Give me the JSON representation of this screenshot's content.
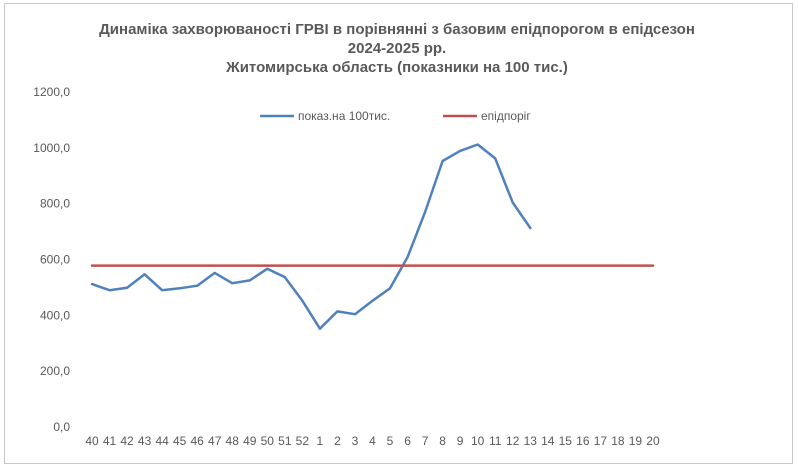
{
  "chart_data": {
    "type": "line",
    "title_lines": [
      "Динаміка захворюваності ГРВІ в порівнянні з базовим епідпорогом в епідсезон",
      "2024-2025 рр.",
      "Житомирська область (показники на 100 тис.)"
    ],
    "categories": [
      "40",
      "41",
      "42",
      "43",
      "44",
      "45",
      "46",
      "47",
      "48",
      "49",
      "50",
      "51",
      "52",
      "1",
      "2",
      "3",
      "4",
      "5",
      "6",
      "7",
      "8",
      "9",
      "10",
      "11",
      "12",
      "13",
      "14",
      "15",
      "16",
      "17",
      "18",
      "19",
      "20"
    ],
    "y_ticks": [
      "0,0",
      "200,0",
      "400,0",
      "600,0",
      "800,0",
      "1000,0",
      "1200,0"
    ],
    "ylim": [
      0,
      1200
    ],
    "grid": false,
    "legend_position": "top-right",
    "colors": {
      "series_1": "#4f81bd",
      "series_2": "#c0504d",
      "text": "#595959"
    },
    "series": [
      {
        "name": "показ.на 100тис.",
        "values": [
          512,
          490,
          499,
          547,
          490,
          497,
          506,
          552,
          515,
          525,
          567,
          537,
          452,
          352,
          414,
          404,
          452,
          497,
          608,
          770,
          953,
          989,
          1012,
          962,
          804,
          713,
          null,
          null,
          null,
          null,
          null,
          null,
          null
        ]
      },
      {
        "name": "епідпоріг",
        "values": [
          578,
          578,
          578,
          578,
          578,
          578,
          578,
          578,
          578,
          578,
          578,
          578,
          578,
          578,
          578,
          578,
          578,
          578,
          578,
          578,
          578,
          578,
          578,
          578,
          578,
          578,
          578,
          578,
          578,
          578,
          578,
          578,
          578
        ]
      }
    ]
  }
}
